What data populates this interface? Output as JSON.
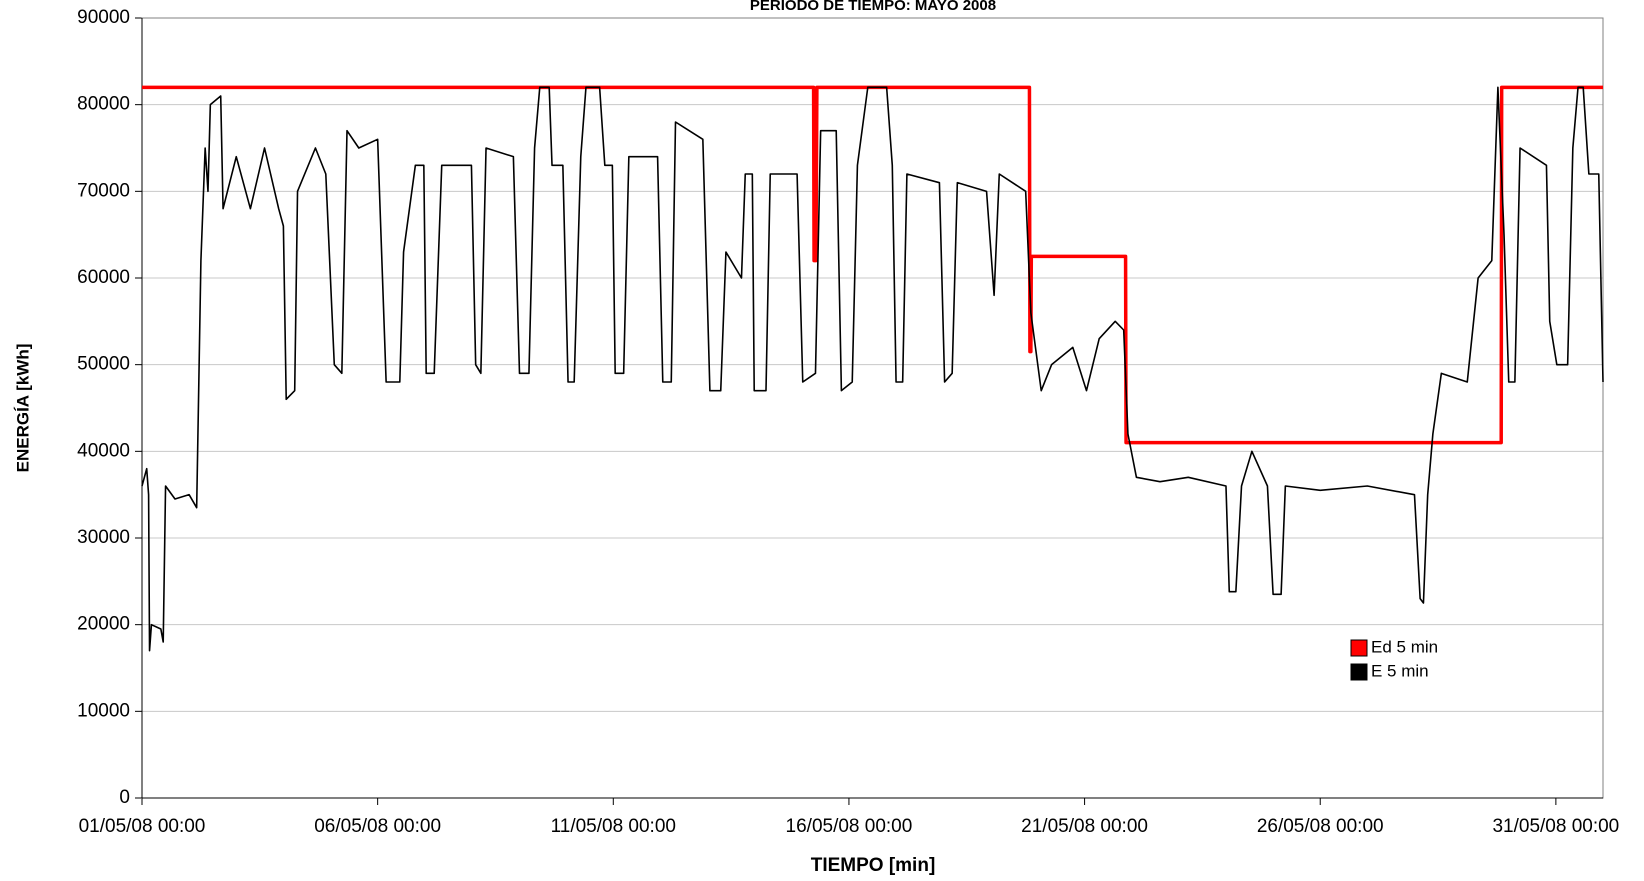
{
  "chart_data": {
    "type": "line",
    "title": "PERIODO DE TIEMPO: MAYO 2008",
    "x_label": "TIEMPO [min]",
    "y_label": "ENERGÍA [kWh]",
    "xlim": [
      0,
      31
    ],
    "xticks": [
      {
        "value": 0,
        "label": "01/05/08 00:00"
      },
      {
        "value": 5,
        "label": "06/05/08 00:00"
      },
      {
        "value": 10,
        "label": "11/05/08 00:00"
      },
      {
        "value": 15,
        "label": "16/05/08 00:00"
      },
      {
        "value": 20,
        "label": "21/05/08 00:00"
      },
      {
        "value": 25,
        "label": "26/05/08 00:00"
      },
      {
        "value": 30,
        "label": "31/05/08 00:00"
      }
    ],
    "ylim": [
      0,
      90000
    ],
    "yticks": [
      0,
      10000,
      20000,
      30000,
      40000,
      50000,
      60000,
      70000,
      80000,
      90000
    ],
    "grid": true,
    "legend": "lower-right",
    "series": [
      {
        "name": "Ed 5 min",
        "color": "#ff0000",
        "x": [
          0,
          14.25,
          14.26,
          14.3,
          14.32,
          18.83,
          18.84,
          18.86,
          18.87,
          20.87,
          20.88,
          28.84,
          28.85,
          31
        ],
        "values": [
          82000,
          82000,
          62000,
          62000,
          82000,
          82000,
          51500,
          51500,
          62500,
          62500,
          41000,
          41000,
          82000,
          82000
        ]
      },
      {
        "name": "E 5 min",
        "color": "#000000",
        "x": [
          0,
          0.1,
          0.14,
          0.16,
          0.2,
          0.4,
          0.45,
          0.5,
          0.7,
          1.0,
          1.16,
          1.25,
          1.34,
          1.4,
          1.45,
          1.67,
          1.72,
          2.0,
          2.3,
          2.6,
          2.9,
          3.0,
          3.06,
          3.24,
          3.3,
          3.68,
          3.9,
          4.08,
          4.24,
          4.35,
          4.6,
          5.0,
          5.18,
          5.47,
          5.55,
          5.8,
          5.98,
          6.03,
          6.2,
          6.36,
          6.99,
          7.08,
          7.19,
          7.3,
          7.88,
          8.01,
          8.21,
          8.33,
          8.44,
          8.64,
          8.7,
          8.93,
          9.04,
          9.17,
          9.31,
          9.42,
          9.71,
          9.82,
          9.98,
          10.04,
          10.22,
          10.33,
          10.94,
          11.05,
          11.23,
          11.32,
          11.9,
          12.05,
          12.28,
          12.39,
          12.72,
          12.8,
          12.95,
          12.99,
          13.24,
          13.33,
          13.9,
          14.02,
          14.29,
          14.4,
          14.73,
          14.84,
          15.07,
          15.18,
          15.4,
          15.8,
          15.92,
          16.0,
          16.14,
          16.23,
          16.92,
          17.03,
          17.19,
          17.3,
          17.92,
          18.08,
          18.19,
          18.75,
          18.86,
          19.08,
          19.3,
          19.75,
          20.04,
          20.31,
          20.65,
          20.83,
          20.92,
          21.1,
          21.6,
          22.2,
          23.0,
          23.07,
          23.21,
          23.33,
          23.55,
          23.88,
          24.0,
          24.17,
          24.26,
          25.0,
          26.0,
          27.0,
          27.12,
          27.19,
          27.28,
          27.39,
          27.57,
          28.12,
          28.35,
          28.64,
          28.77,
          28.9,
          29.0,
          29.13,
          29.24,
          29.8,
          29.87,
          30.02,
          30.25,
          30.36,
          30.47,
          30.58,
          30.7,
          30.91,
          31
        ],
        "values": [
          36000,
          38000,
          35000,
          17000,
          20000,
          19500,
          18000,
          36000,
          34500,
          35000,
          33500,
          62000,
          75000,
          70000,
          80000,
          81000,
          68000,
          74000,
          68000,
          75000,
          68000,
          66000,
          46000,
          47000,
          70000,
          75000,
          72000,
          50000,
          49000,
          77000,
          75000,
          76000,
          48000,
          48000,
          63000,
          73000,
          73000,
          49000,
          49000,
          73000,
          73000,
          50000,
          49000,
          75000,
          74000,
          49000,
          49000,
          75000,
          82000,
          82000,
          73000,
          73000,
          48000,
          48000,
          74000,
          82000,
          82000,
          73000,
          73000,
          49000,
          49000,
          74000,
          74000,
          48000,
          48000,
          78000,
          76000,
          47000,
          47000,
          63000,
          60000,
          72000,
          72000,
          47000,
          47000,
          72000,
          72000,
          48000,
          49000,
          77000,
          77000,
          47000,
          48000,
          73000,
          82000,
          82000,
          73000,
          48000,
          48000,
          72000,
          71000,
          48000,
          49000,
          71000,
          70000,
          58000,
          72000,
          70000,
          56000,
          47000,
          50000,
          52000,
          47000,
          53000,
          55000,
          54000,
          42000,
          37000,
          36500,
          37000,
          36000,
          23800,
          23800,
          36000,
          40000,
          36000,
          23500,
          23500,
          36000,
          35500,
          36000,
          35000,
          23000,
          22500,
          35000,
          42000,
          49000,
          48000,
          60000,
          62000,
          82000,
          65000,
          48000,
          48000,
          75000,
          73000,
          55000,
          50000,
          50000,
          75000,
          82000,
          82000,
          72000,
          72000,
          48000
        ]
      }
    ]
  }
}
